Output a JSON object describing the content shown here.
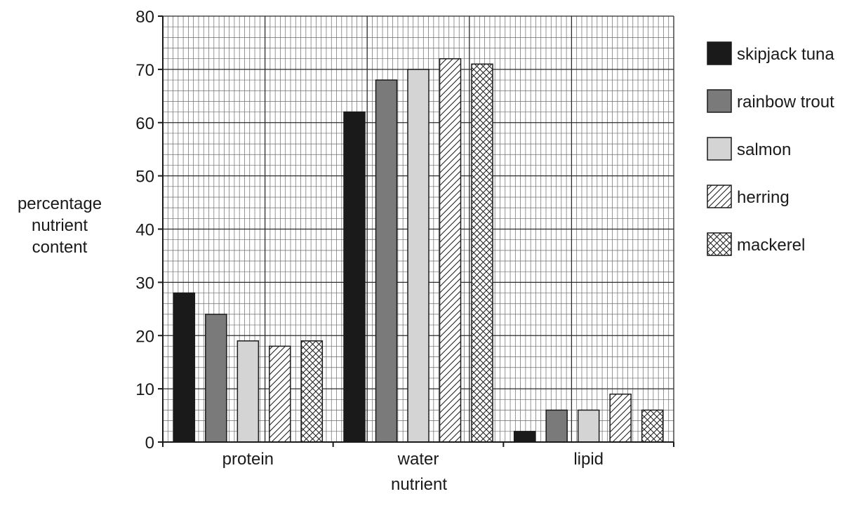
{
  "chart_data": {
    "type": "bar",
    "title": "",
    "xlabel": "nutrient",
    "ylabel": [
      "percentage",
      "nutrient",
      "content"
    ],
    "categories": [
      "protein",
      "water",
      "lipid"
    ],
    "ylim": [
      0,
      80
    ],
    "yticks": [
      0,
      10,
      20,
      30,
      40,
      50,
      60,
      70,
      80
    ],
    "grid": true,
    "legend_position": "right",
    "series": [
      {
        "name": "skipjack tuna",
        "pattern": "solid",
        "color": "#1a1a1a",
        "values": [
          28,
          62,
          2
        ]
      },
      {
        "name": "rainbow trout",
        "pattern": "solid",
        "color": "#7a7a7a",
        "values": [
          24,
          68,
          6
        ]
      },
      {
        "name": "salmon",
        "pattern": "solid",
        "color": "#d4d4d4",
        "values": [
          19,
          70,
          6
        ]
      },
      {
        "name": "herring",
        "pattern": "diagonal-hatch",
        "color": "#ffffff",
        "values": [
          18,
          72,
          9
        ]
      },
      {
        "name": "mackerel",
        "pattern": "cross-hatch",
        "color": "#ffffff",
        "values": [
          19,
          71,
          6
        ]
      }
    ]
  }
}
